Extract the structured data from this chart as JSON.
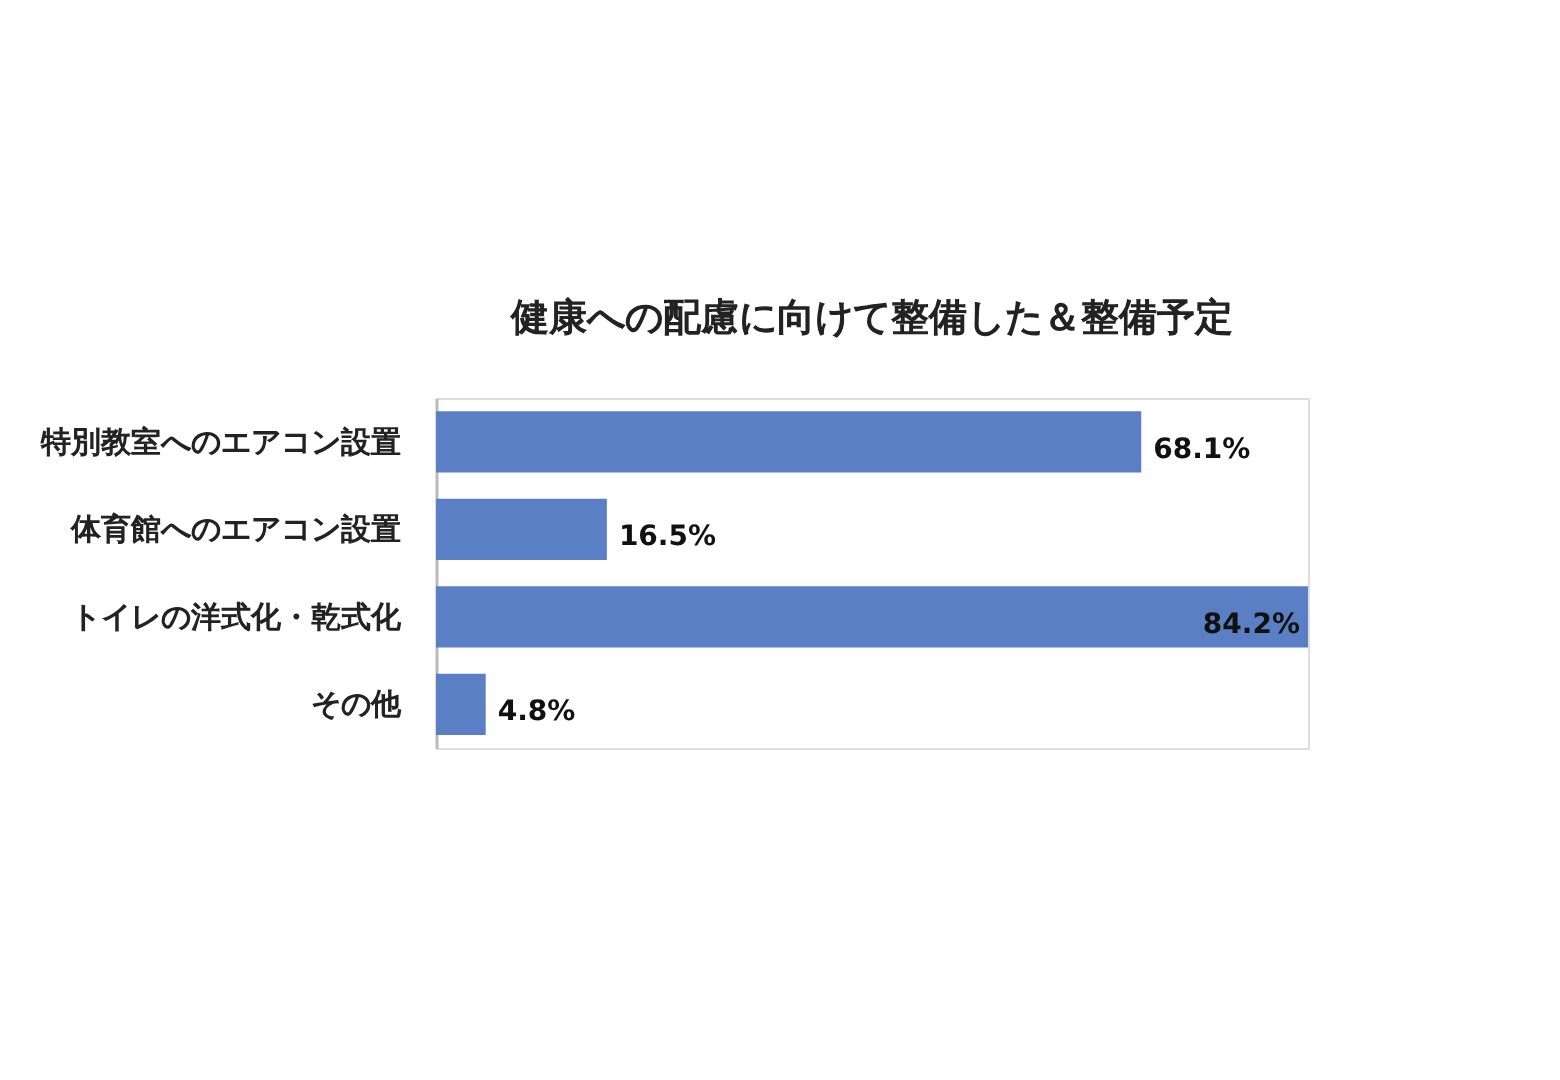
{
  "chart_data": {
    "type": "bar",
    "orientation": "horizontal",
    "title": "健康への配慮に向けて整備した＆整備予定",
    "categories": [
      "特別教室へのエアコン設置",
      "体育館へのエアコン設置",
      "トイレの洋式化・乾式化",
      "その他"
    ],
    "values": [
      68.1,
      16.5,
      84.2,
      4.8
    ],
    "value_labels": [
      "68.1%",
      "16.5%",
      "84.2%",
      "4.8%"
    ],
    "color": "#5b7fc4",
    "grid": false,
    "tick_labels": "y"
  }
}
